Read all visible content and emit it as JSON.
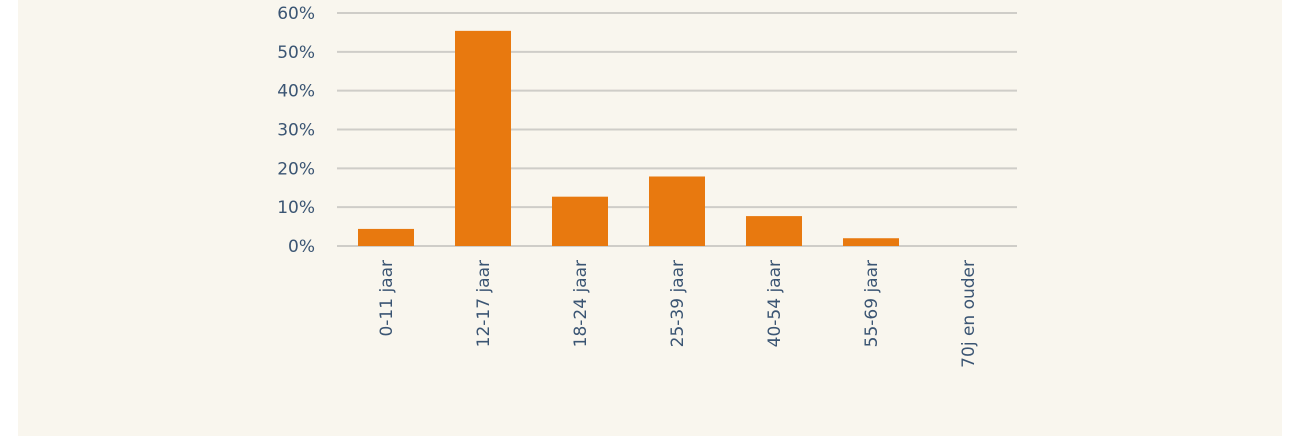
{
  "chart_data": {
    "type": "bar",
    "categories": [
      "0-11 jaar",
      "12-17 jaar",
      "18-24 jaar",
      "25-39 jaar",
      "40-54 jaar",
      "55-69 jaar",
      "70j en ouder"
    ],
    "values": [
      4.4,
      55.4,
      12.7,
      17.9,
      7.7,
      2.0,
      0
    ],
    "unit": "%",
    "ylim": [
      0,
      60
    ],
    "yticks": [
      "0%",
      "10%",
      "20%",
      "30%",
      "40%",
      "50%",
      "60%"
    ],
    "grid": true,
    "bar_color": "#e8790f",
    "grid_color": "#cfcdc8",
    "tick_color": "#3b5573",
    "background": "#f9f6ee"
  }
}
